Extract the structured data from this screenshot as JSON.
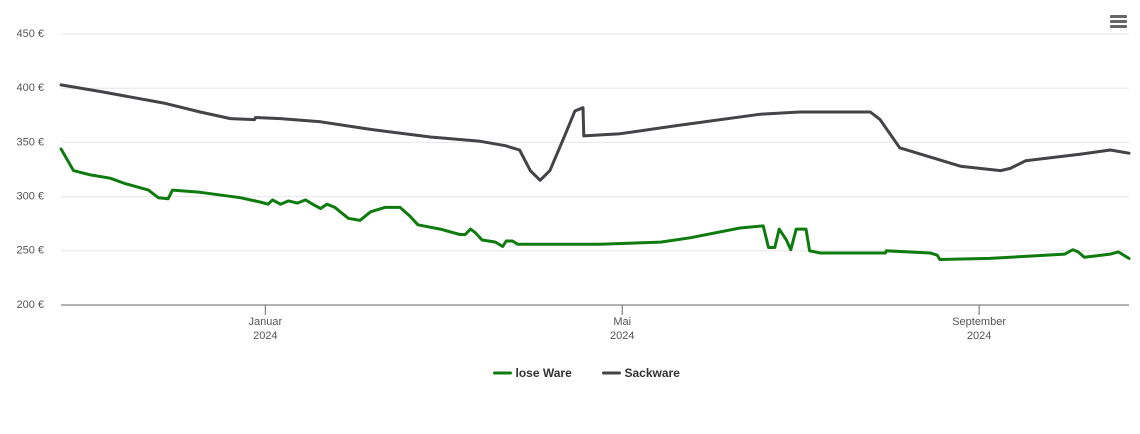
{
  "chart_data": {
    "type": "line",
    "x_unit_note_free": null,
    "xlim": [
      -2.29,
      9.68
    ],
    "xticks": [
      {
        "value": 0,
        "label": "Januar",
        "sublabel": "2024"
      },
      {
        "value": 4,
        "label": "Mai",
        "sublabel": "2024"
      },
      {
        "value": 8,
        "label": "September",
        "sublabel": "2024"
      }
    ],
    "ylim": [
      200,
      450
    ],
    "yticks": [
      {
        "value": 200,
        "label": "200 €"
      },
      {
        "value": 250,
        "label": "250 €"
      },
      {
        "value": 300,
        "label": "300 €"
      },
      {
        "value": 350,
        "label": "350 €"
      },
      {
        "value": 400,
        "label": "400 €"
      },
      {
        "value": 450,
        "label": "450 €"
      }
    ],
    "grid": true,
    "legend": "bottom",
    "series": [
      {
        "name": "lose Ware",
        "color": "#0f7b0f",
        "x": [
          -2.29,
          -2.15,
          -1.96,
          -1.74,
          -1.57,
          -1.31,
          -1.2,
          -1.09,
          -1.04,
          -0.73,
          -0.28,
          -0.06,
          0.03,
          0.08,
          0.17,
          0.26,
          0.36,
          0.45,
          0.53,
          0.62,
          0.69,
          0.78,
          0.93,
          1.06,
          1.18,
          1.34,
          1.51,
          1.62,
          1.71,
          1.96,
          2.18,
          2.24,
          2.3,
          2.35,
          2.43,
          2.58,
          2.66,
          2.7,
          2.77,
          2.83,
          3.75,
          4.43,
          4.76,
          5.32,
          5.58,
          5.64,
          5.71,
          5.76,
          5.84,
          5.89,
          5.95,
          6.06,
          6.1,
          6.22,
          6.95,
          6.96,
          7.45,
          7.53,
          7.56,
          8.12,
          8.96,
          9.05,
          9.11,
          9.18,
          9.47,
          9.56,
          9.68
        ],
        "values": [
          344,
          324,
          320,
          317,
          312,
          306,
          299,
          298,
          306,
          304,
          299,
          295,
          293,
          297,
          293,
          296,
          294,
          297,
          293,
          289,
          293,
          290,
          280,
          278,
          286,
          290,
          290,
          282,
          274,
          270,
          265,
          265,
          270,
          267,
          260,
          258,
          254,
          259,
          259,
          256,
          256,
          258,
          262,
          271,
          273,
          253,
          253,
          270,
          260,
          251,
          270,
          270,
          250,
          248,
          248,
          250,
          248,
          246,
          242,
          243,
          247,
          251,
          249,
          244,
          247,
          249,
          243
        ]
      },
      {
        "name": "Sackware",
        "color": "#434348",
        "x": [
          -2.29,
          -1.85,
          -1.12,
          -0.73,
          -0.39,
          -0.12,
          -0.11,
          0.17,
          0.62,
          1.18,
          1.85,
          2.41,
          2.69,
          2.85,
          2.97,
          3.08,
          3.19,
          3.36,
          3.47,
          3.56,
          3.57,
          3.98,
          4.65,
          5.55,
          5.99,
          6.78,
          6.89,
          7.11,
          7.79,
          8.24,
          8.35,
          8.52,
          9.13,
          9.47,
          9.68
        ],
        "values": [
          403,
          397,
          386,
          378,
          372,
          371,
          373,
          372,
          369,
          362,
          355,
          351,
          347,
          343,
          324,
          315,
          324,
          357,
          379,
          382,
          356,
          358,
          366,
          376,
          378,
          378,
          371,
          345,
          328,
          324,
          326,
          333,
          339,
          343,
          340
        ]
      }
    ]
  }
}
